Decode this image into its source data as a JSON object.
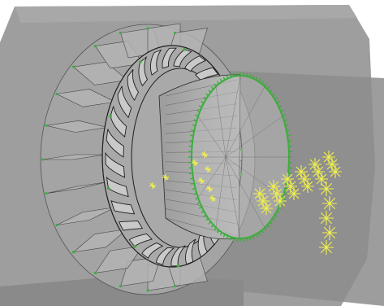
{
  "viewport": {
    "background": "#ffffff",
    "colors": {
      "housing": "#9b9b9b",
      "panel": "#8e8e8e",
      "wireframe": "#1e1e1e",
      "selection": "#3cae3c",
      "markers": "#f2f24a",
      "blades": "#b4b4b4"
    },
    "rotor": {
      "blade_count": 24,
      "vane_count": 28
    },
    "outlet_ring": {
      "node_count": 96
    },
    "marker_grid": {
      "rows": 3,
      "columns": 6,
      "tail_count": 5
    }
  }
}
